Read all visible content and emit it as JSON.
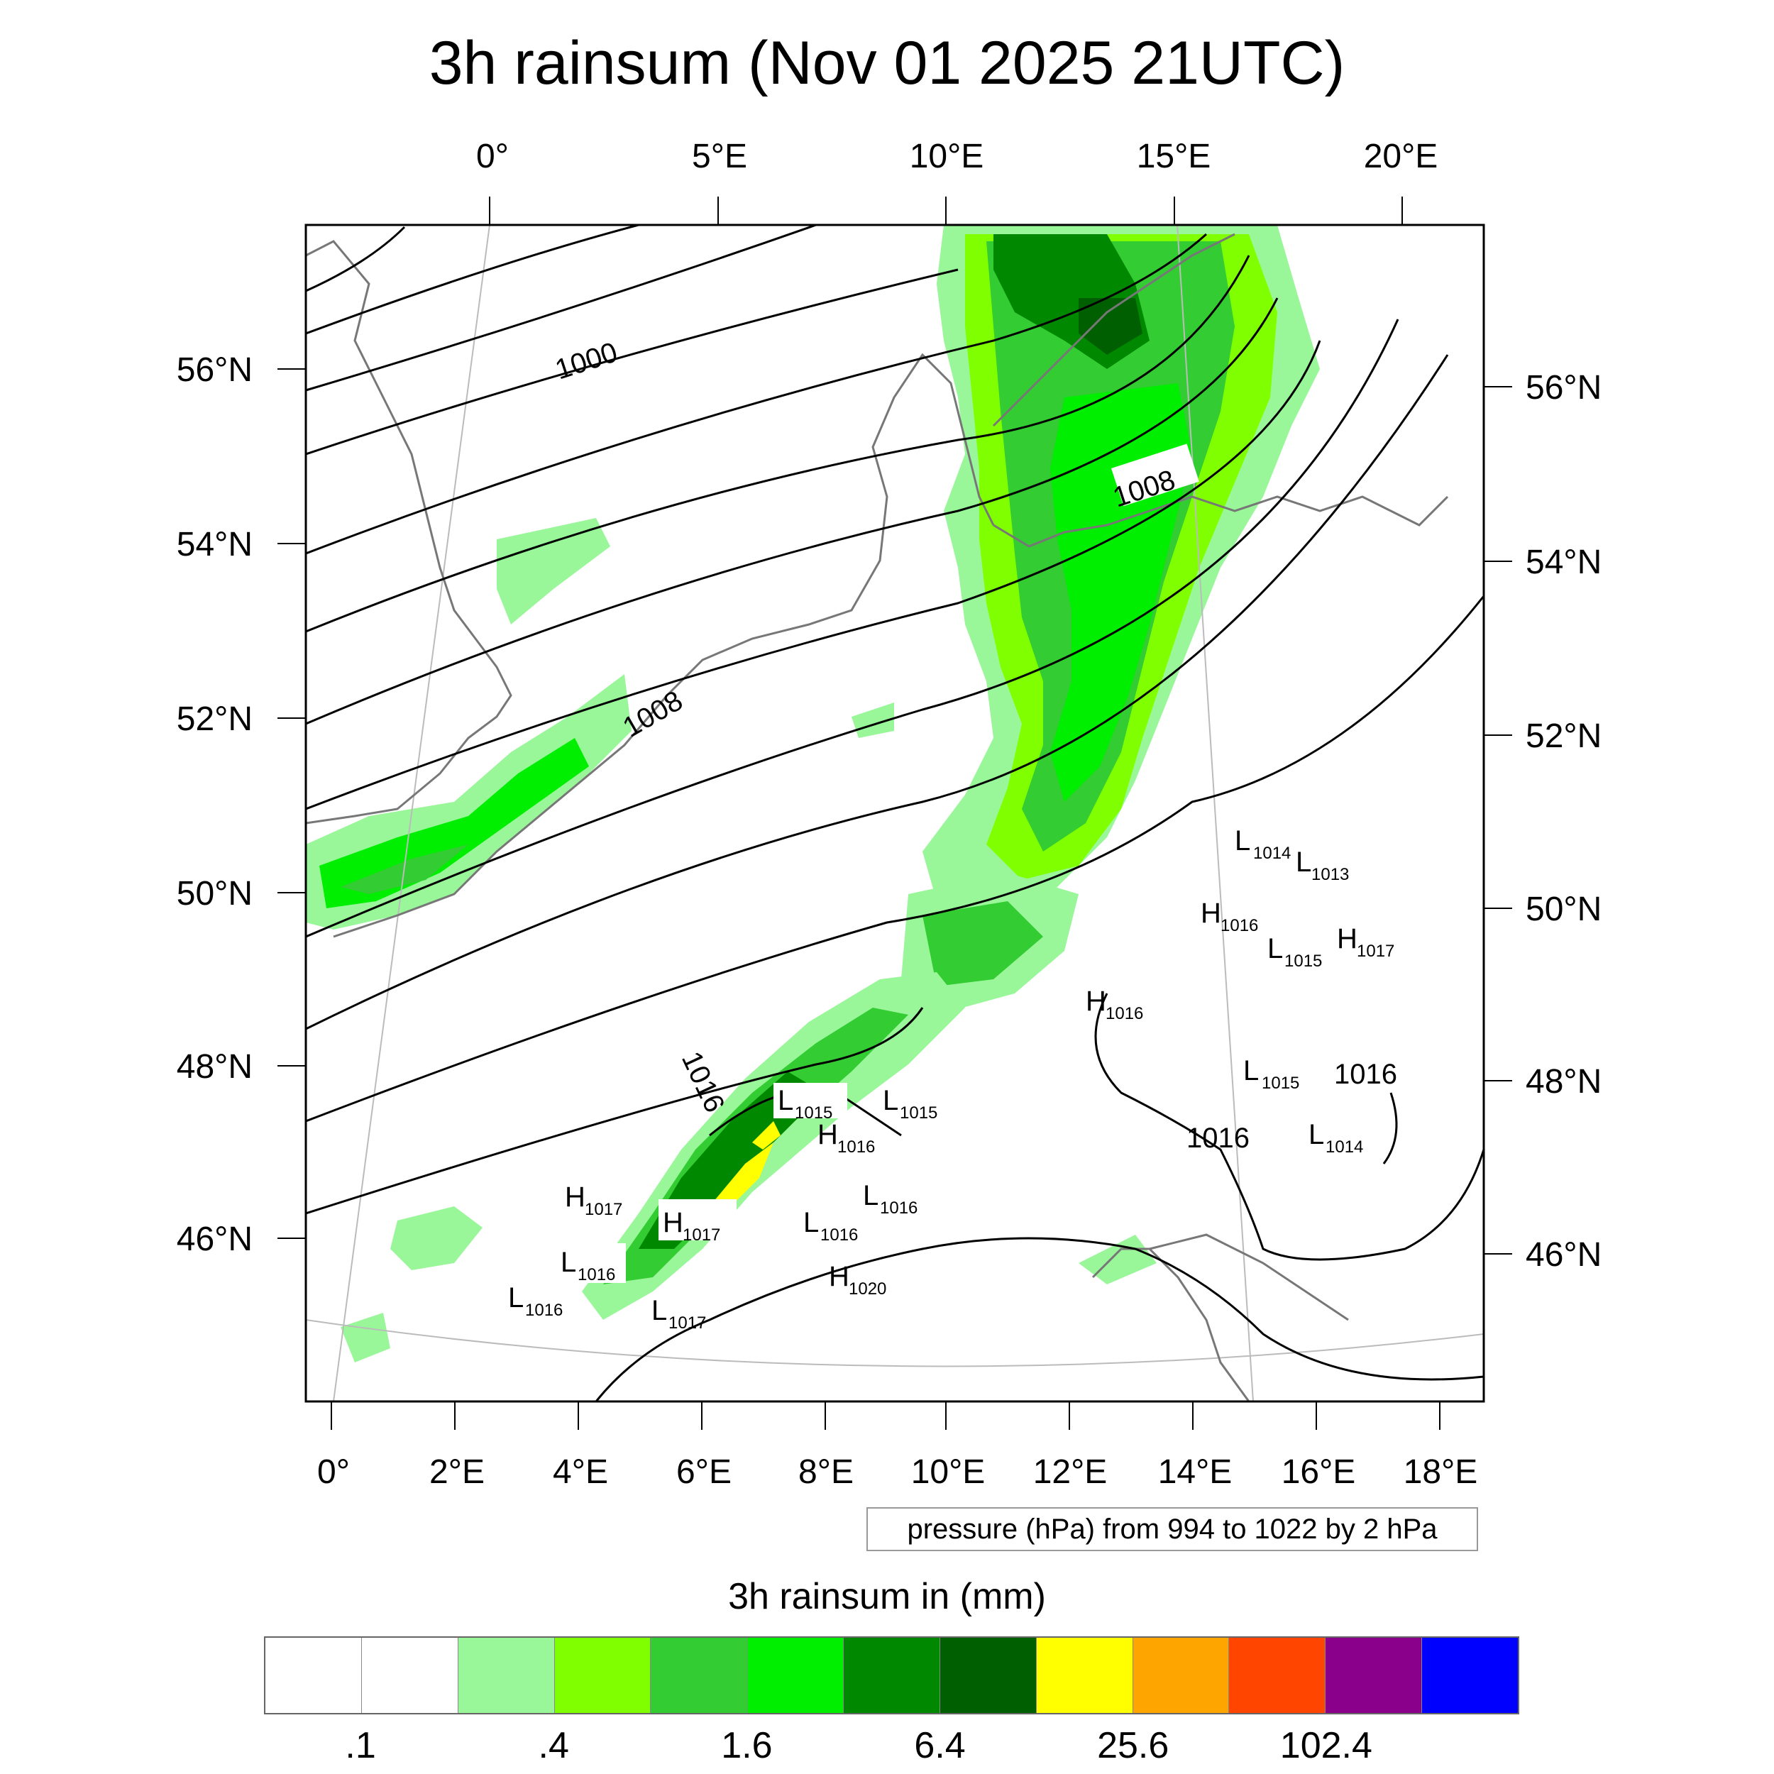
{
  "title": "3h rainsum (Nov 01 2025 21UTC)",
  "axes": {
    "top_lon": [
      "0°",
      "5°E",
      "10°E",
      "15°E",
      "20°E"
    ],
    "bottom_lon": [
      "0°",
      "2°E",
      "4°E",
      "6°E",
      "8°E",
      "10°E",
      "12°E",
      "14°E",
      "16°E",
      "18°E"
    ],
    "left_lat": [
      "56°N",
      "54°N",
      "52°N",
      "50°N",
      "48°N",
      "46°N"
    ],
    "right_lat": [
      "56°N",
      "54°N",
      "52°N",
      "50°N",
      "48°N",
      "46°N"
    ]
  },
  "isobar_labels": [
    "1000",
    "1008",
    "1008",
    "1016",
    "1016",
    "1016"
  ],
  "pressure_markers": [
    {
      "kind": "L",
      "value": "1014"
    },
    {
      "kind": "L",
      "value": "1013"
    },
    {
      "kind": "H",
      "value": "1016"
    },
    {
      "kind": "L",
      "value": "1015"
    },
    {
      "kind": "H",
      "value": "1017"
    },
    {
      "kind": "H",
      "value": "1016"
    },
    {
      "kind": "L",
      "value": "1015"
    },
    {
      "kind": "L",
      "value": "1014"
    },
    {
      "kind": "L",
      "value": "1015"
    },
    {
      "kind": "L",
      "value": "1015"
    },
    {
      "kind": "H",
      "value": "1016"
    },
    {
      "kind": "L",
      "value": "1016"
    },
    {
      "kind": "H",
      "value": "1017"
    },
    {
      "kind": "H",
      "value": "1017"
    },
    {
      "kind": "L",
      "value": "1016"
    },
    {
      "kind": "L",
      "value": "1016"
    },
    {
      "kind": "L",
      "value": "1016"
    },
    {
      "kind": "L",
      "value": "1017"
    },
    {
      "kind": "H",
      "value": "1020"
    }
  ],
  "contour_note": "pressure (hPa) from 994 to 1022 by 2 hPa",
  "colorbar": {
    "title": "3h rainsum in (mm)",
    "colors": [
      "#ffffff",
      "#ffffff",
      "#99f799",
      "#80ff00",
      "#33cc33",
      "#00ee00",
      "#008800",
      "#005f00",
      "#ffff00",
      "#ffa500",
      "#ff4500",
      "#8b008b",
      "#0000ff"
    ],
    "labels": [
      ".1",
      ".4",
      "1.6",
      "6.4",
      "25.6",
      "102.4"
    ]
  }
}
